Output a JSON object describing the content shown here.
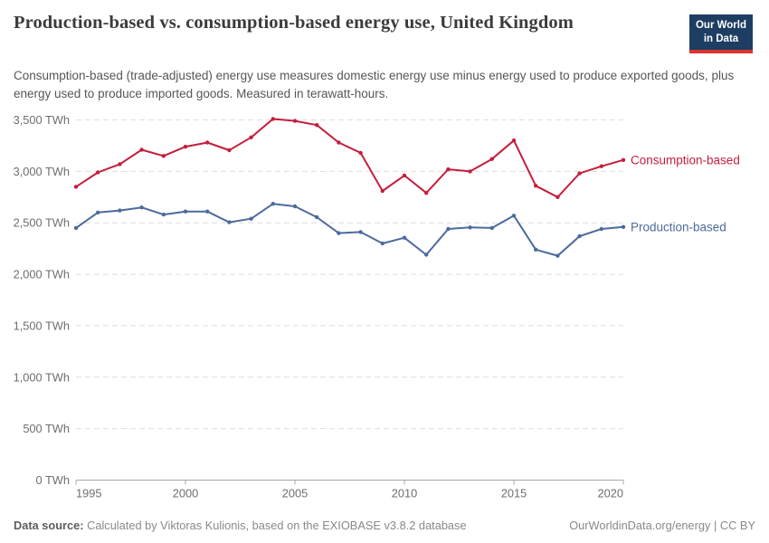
{
  "header": {
    "title": "Production-based vs. consumption-based energy use, United Kingdom",
    "subtitle": "Consumption-based (trade-adjusted) energy use measures domestic energy use minus energy used to produce exported goods, plus energy used to produce imported goods. Measured in terawatt-hours.",
    "logo_line1": "Our World",
    "logo_line2": "in Data"
  },
  "footer": {
    "source_label": "Data source:",
    "source_text": "Calculated by Viktoras Kulionis, based on the EXIOBASE v3.8.2 database",
    "license": "OurWorldinData.org/energy | CC BY"
  },
  "colors": {
    "consumption_red": "#C41E3D",
    "production_blue": "#4C6A9C",
    "logo_background": "#1d3d63",
    "logo_bar": "#dc352c"
  },
  "chart_data": {
    "type": "line",
    "x": [
      1995,
      1996,
      1997,
      1998,
      1999,
      2000,
      2001,
      2002,
      2003,
      2004,
      2005,
      2006,
      2007,
      2008,
      2009,
      2010,
      2011,
      2012,
      2013,
      2014,
      2015,
      2016,
      2017,
      2018,
      2019,
      2020
    ],
    "series": [
      {
        "name": "Consumption-based",
        "color": "#C41E3D",
        "values": [
          2850,
          2990,
          3070,
          3210,
          3150,
          3240,
          3280,
          3205,
          3330,
          3510,
          3490,
          3450,
          3280,
          3180,
          2810,
          2960,
          2790,
          3020,
          3000,
          3120,
          3300,
          2860,
          2750,
          2980,
          3050,
          3110
        ]
      },
      {
        "name": "Production-based",
        "color": "#4C6A9C",
        "values": [
          2450,
          2600,
          2620,
          2650,
          2580,
          2610,
          2610,
          2505,
          2540,
          2685,
          2660,
          2555,
          2400,
          2410,
          2300,
          2355,
          2190,
          2440,
          2455,
          2450,
          2570,
          2240,
          2180,
          2370,
          2440,
          2460
        ]
      }
    ],
    "unit": "TWh",
    "ylim": [
      0,
      3500
    ],
    "y_ticks": [
      0,
      500,
      1000,
      1500,
      2000,
      2500,
      3000,
      3500
    ],
    "y_tick_labels": [
      "0 TWh",
      "500 TWh",
      "1,000 TWh",
      "1,500 TWh",
      "2,000 TWh",
      "2,500 TWh",
      "3,000 TWh",
      "3,500 TWh"
    ],
    "x_ticks": [
      1995,
      2000,
      2005,
      2010,
      2015,
      2020
    ],
    "grid": "dashed-horizontal",
    "legend_position": "right-end-labels"
  }
}
